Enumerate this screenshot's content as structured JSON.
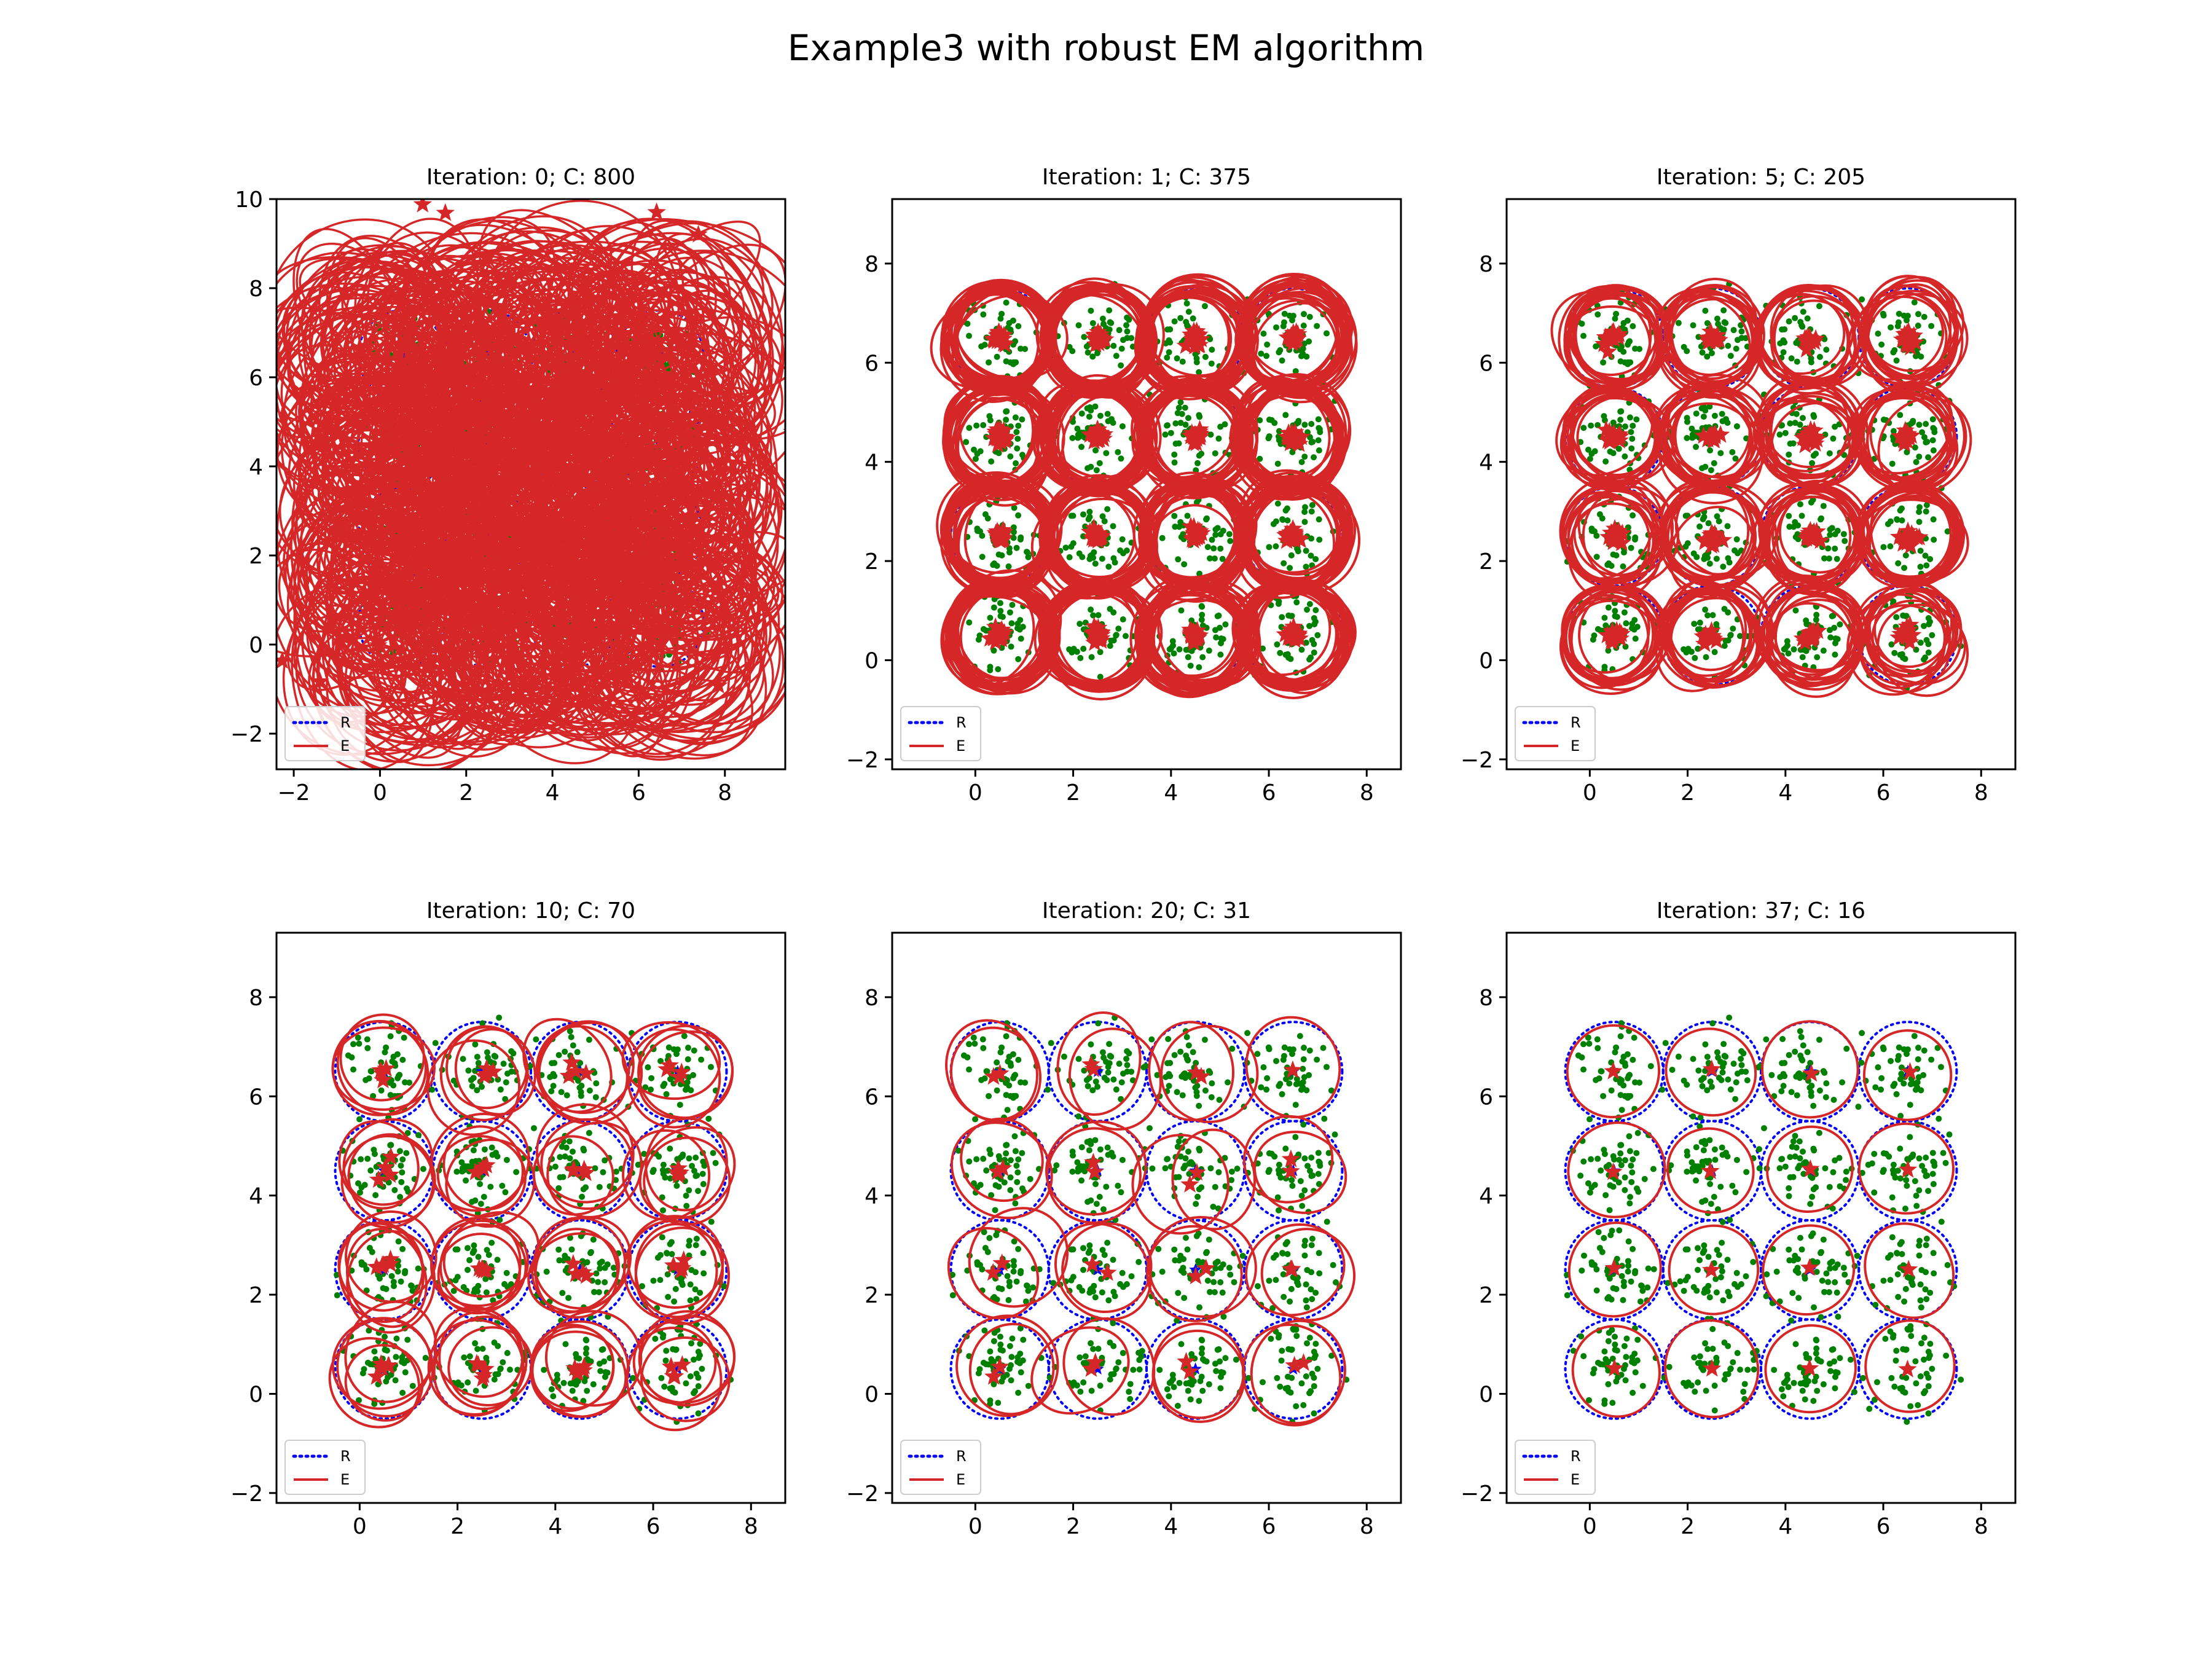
{
  "figure": {
    "title": "Example3 with robust EM algorithm",
    "colors": {
      "reference": "#0000ff",
      "estimate": "#d62728",
      "points": "#008000",
      "reference_center": "#0000ff",
      "estimate_center": "#d62728"
    }
  },
  "legend": {
    "labels": [
      "R",
      "E"
    ],
    "placement": "lower-left"
  },
  "chart_data": [
    {
      "type": "scatter",
      "title": "Iteration: 0; C: 800",
      "xlim": [
        -2.4,
        9.4
      ],
      "ylim": [
        -2.8,
        10.0
      ],
      "xticks": [
        "−2",
        "0",
        "2",
        "4",
        "6",
        "8"
      ],
      "xtick_values": [
        -2,
        0,
        2,
        4,
        6,
        8
      ],
      "yticks": [
        "−2",
        "0",
        "2",
        "4",
        "6",
        "8",
        "10"
      ],
      "ytick_values": [
        -2,
        0,
        2,
        4,
        6,
        8,
        10
      ],
      "components": 800,
      "estimate_radius": 1.6,
      "spread": 0.55,
      "converged": false
    },
    {
      "type": "scatter",
      "title": "Iteration: 1; C: 375",
      "xlim": [
        -1.7,
        8.7
      ],
      "ylim": [
        -2.2,
        9.3
      ],
      "xticks": [
        "0",
        "2",
        "4",
        "6",
        "8"
      ],
      "xtick_values": [
        0,
        2,
        4,
        6,
        8
      ],
      "yticks": [
        "−2",
        "0",
        "2",
        "4",
        "6",
        "8"
      ],
      "ytick_values": [
        -2,
        0,
        2,
        4,
        6,
        8
      ],
      "components": 375,
      "estimate_radius": 0.95,
      "spread": 0.12,
      "converged": false
    },
    {
      "type": "scatter",
      "title": "Iteration: 5; C: 205",
      "xlim": [
        -1.7,
        8.7
      ],
      "ylim": [
        -2.2,
        9.3
      ],
      "xticks": [
        "0",
        "2",
        "4",
        "6",
        "8"
      ],
      "xtick_values": [
        0,
        2,
        4,
        6,
        8
      ],
      "yticks": [
        "−2",
        "0",
        "2",
        "4",
        "6",
        "8"
      ],
      "ytick_values": [
        -2,
        0,
        2,
        4,
        6,
        8
      ],
      "components": 205,
      "estimate_radius": 0.85,
      "spread": 0.15,
      "converged": false
    },
    {
      "type": "scatter",
      "title": "Iteration: 10; C: 70",
      "xlim": [
        -1.7,
        8.7
      ],
      "ylim": [
        -2.2,
        9.3
      ],
      "xticks": [
        "0",
        "2",
        "4",
        "6",
        "8"
      ],
      "xtick_values": [
        0,
        2,
        4,
        6,
        8
      ],
      "yticks": [
        "−2",
        "0",
        "2",
        "4",
        "6",
        "8"
      ],
      "ytick_values": [
        -2,
        0,
        2,
        4,
        6,
        8
      ],
      "components": 70,
      "estimate_radius": 0.8,
      "spread": 0.18,
      "converged": false
    },
    {
      "type": "scatter",
      "title": "Iteration: 20; C: 31",
      "xlim": [
        -1.7,
        8.7
      ],
      "ylim": [
        -2.2,
        9.3
      ],
      "xticks": [
        "0",
        "2",
        "4",
        "6",
        "8"
      ],
      "xtick_values": [
        0,
        2,
        4,
        6,
        8
      ],
      "yticks": [
        "−2",
        "0",
        "2",
        "4",
        "6",
        "8"
      ],
      "ytick_values": [
        -2,
        0,
        2,
        4,
        6,
        8
      ],
      "components": 31,
      "estimate_radius": 0.82,
      "spread": 0.2,
      "converged": false
    },
    {
      "type": "scatter",
      "title": "Iteration: 37; C: 16",
      "xlim": [
        -1.7,
        8.7
      ],
      "ylim": [
        -2.2,
        9.3
      ],
      "xticks": [
        "0",
        "2",
        "4",
        "6",
        "8"
      ],
      "xtick_values": [
        0,
        2,
        4,
        6,
        8
      ],
      "yticks": [
        "−2",
        "0",
        "2",
        "4",
        "6",
        "8"
      ],
      "ytick_values": [
        -2,
        0,
        2,
        4,
        6,
        8
      ],
      "components": 16,
      "estimate_radius": 0.88,
      "spread": 0.04,
      "converged": true
    }
  ],
  "clusters": {
    "centers": [
      [
        0.5,
        0.5
      ],
      [
        2.5,
        0.5
      ],
      [
        4.5,
        0.5
      ],
      [
        6.5,
        0.5
      ],
      [
        0.5,
        2.5
      ],
      [
        2.5,
        2.5
      ],
      [
        4.5,
        2.5
      ],
      [
        6.5,
        2.5
      ],
      [
        0.5,
        4.5
      ],
      [
        2.5,
        4.5
      ],
      [
        4.5,
        4.5
      ],
      [
        6.5,
        4.5
      ],
      [
        0.5,
        6.5
      ],
      [
        2.5,
        6.5
      ],
      [
        4.5,
        6.5
      ],
      [
        6.5,
        6.5
      ]
    ],
    "reference_radius": 1.0,
    "points_per_cluster": 50
  }
}
